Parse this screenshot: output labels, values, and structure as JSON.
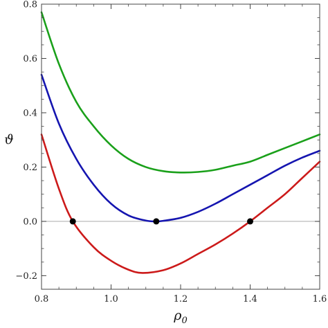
{
  "chart_data": {
    "type": "line",
    "xlabel": "ρ",
    "xlabel_sub": "0",
    "ylabel": "ϑ",
    "xlim": [
      0.8,
      1.6
    ],
    "ylim": [
      -0.25,
      0.8
    ],
    "x_ticks": [
      0.8,
      1.0,
      1.2,
      1.4,
      1.6
    ],
    "x_tick_labels": [
      "0.8",
      "1.0",
      "1.2",
      "1.4",
      "1.6"
    ],
    "y_ticks": [
      -0.2,
      0.0,
      0.2,
      0.4,
      0.6,
      0.8
    ],
    "y_tick_labels": [
      "−0.2",
      "0.0",
      "0.2",
      "0.4",
      "0.6",
      "0.8"
    ],
    "grid": false,
    "reference_line_y": 0.0,
    "series": [
      {
        "color": "#1aa01a",
        "x": [
          0.8,
          0.85,
          0.9,
          0.95,
          1.0,
          1.05,
          1.1,
          1.15,
          1.2,
          1.25,
          1.3,
          1.35,
          1.4,
          1.45,
          1.5,
          1.55,
          1.6
        ],
        "y": [
          0.77,
          0.58,
          0.44,
          0.35,
          0.28,
          0.23,
          0.2,
          0.185,
          0.18,
          0.182,
          0.19,
          0.205,
          0.22,
          0.245,
          0.27,
          0.295,
          0.32
        ]
      },
      {
        "color": "#1515b0",
        "x": [
          0.8,
          0.85,
          0.9,
          0.95,
          1.0,
          1.05,
          1.1,
          1.13,
          1.15,
          1.2,
          1.25,
          1.3,
          1.35,
          1.4,
          1.45,
          1.5,
          1.55,
          1.6
        ],
        "y": [
          0.54,
          0.36,
          0.23,
          0.135,
          0.065,
          0.022,
          0.003,
          0.0,
          0.002,
          0.013,
          0.035,
          0.065,
          0.1,
          0.135,
          0.17,
          0.205,
          0.235,
          0.26
        ]
      },
      {
        "color": "#cc1a1a",
        "x": [
          0.8,
          0.85,
          0.89,
          0.95,
          1.0,
          1.05,
          1.09,
          1.15,
          1.2,
          1.25,
          1.3,
          1.35,
          1.4,
          1.45,
          1.5,
          1.55,
          1.6
        ],
        "y": [
          0.32,
          0.12,
          0.0,
          -0.095,
          -0.145,
          -0.178,
          -0.19,
          -0.18,
          -0.155,
          -0.12,
          -0.085,
          -0.045,
          0.0,
          0.05,
          0.1,
          0.16,
          0.22
        ]
      }
    ],
    "points": [
      {
        "x": 0.89,
        "y": 0.0
      },
      {
        "x": 1.13,
        "y": 0.0
      },
      {
        "x": 1.4,
        "y": 0.0
      }
    ]
  }
}
